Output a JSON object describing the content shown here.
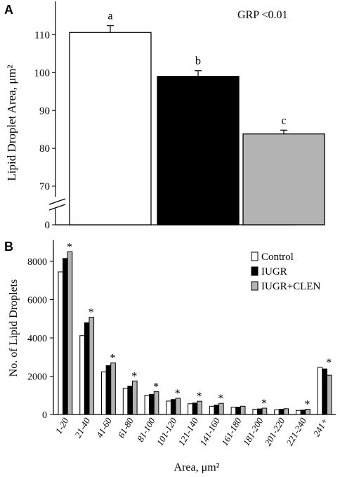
{
  "chart_data": [
    {
      "panel": "A",
      "type": "bar",
      "ylabel": "Lipid Droplet Area, μm²",
      "annotation": "GRP  <0.01",
      "axis_break": true,
      "ylim": [
        65,
        115
      ],
      "yticks": [
        70,
        80,
        90,
        100,
        110
      ],
      "ytick_labels": [
        "70",
        "80",
        "90",
        "100",
        "110"
      ],
      "origin_label": "0",
      "grid": false,
      "categories": [
        "",
        "",
        ""
      ],
      "series": [
        {
          "values": [
            110.6,
            99.0,
            83.8
          ],
          "errors": [
            1.8,
            1.5,
            1.0
          ]
        }
      ],
      "bar_colors": [
        "#ffffff",
        "#000000",
        "#b3b3b3"
      ],
      "bar_labels": [
        "a",
        "b",
        "c"
      ]
    },
    {
      "panel": "B",
      "type": "bar",
      "xlabel": "Area, μm²",
      "ylabel": "No. of Lipid Droplets",
      "ylim": [
        0,
        9000
      ],
      "yticks": [
        0,
        2000,
        4000,
        6000,
        8000
      ],
      "ytick_labels": [
        "0",
        "2000",
        "4000",
        "6000",
        "8000"
      ],
      "grid": false,
      "legend_position": "top-right",
      "categories": [
        "1-20",
        "21-40",
        "41-60",
        "61-80",
        "81-100",
        "101-120",
        "121-140",
        "141-160",
        "161-180",
        "181-200",
        "201-220",
        "221-240",
        "241+"
      ],
      "series": [
        {
          "name": "Control",
          "color": "#ffffff",
          "values": [
            7450,
            4120,
            2230,
            1370,
            1000,
            700,
            560,
            430,
            380,
            270,
            240,
            210,
            2460
          ]
        },
        {
          "name": "IUGR",
          "color": "#000000",
          "values": [
            8150,
            4790,
            2550,
            1480,
            1050,
            780,
            600,
            490,
            380,
            290,
            270,
            230,
            2380
          ]
        },
        {
          "name": "IUGR+CLEN",
          "color": "#b3b3b3",
          "values": [
            8500,
            5080,
            2690,
            1750,
            1190,
            850,
            690,
            580,
            430,
            330,
            300,
            270,
            2050
          ]
        }
      ],
      "significance_marks": [
        "*",
        "*",
        "*",
        "*",
        "*",
        "*",
        "*",
        "*",
        "",
        "*",
        "",
        "*",
        "*"
      ]
    }
  ]
}
